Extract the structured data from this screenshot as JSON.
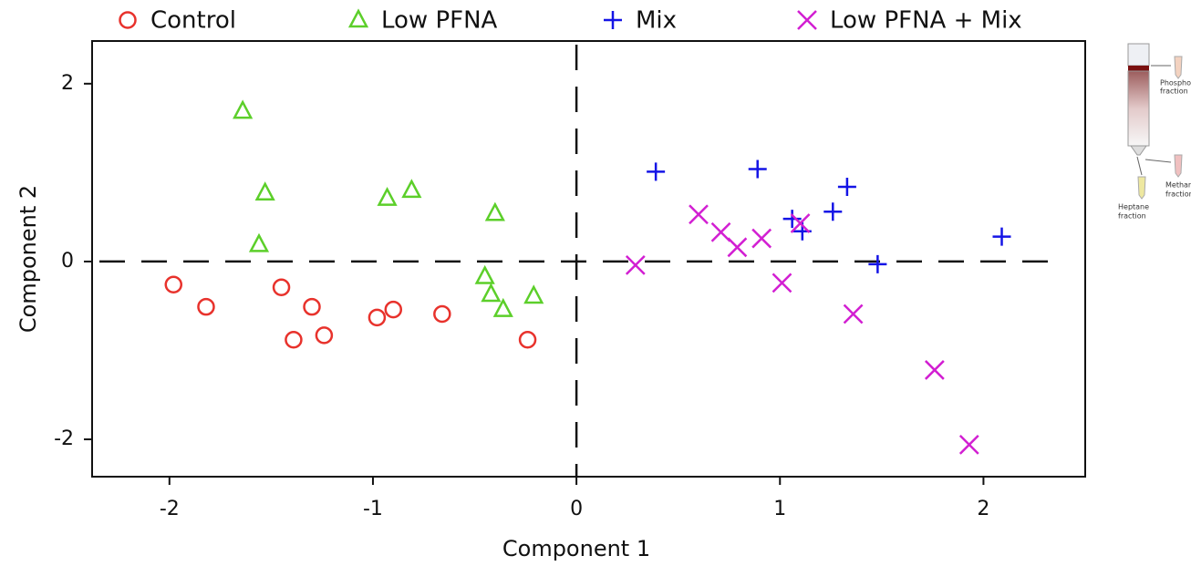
{
  "chart_data": {
    "type": "scatter",
    "xlabel": "Component 1",
    "ylabel": "Component 2",
    "xlim": [
      -2.38,
      2.5
    ],
    "ylim": [
      -2.42,
      2.48
    ],
    "xticks": [
      -2,
      -1,
      0,
      1,
      2
    ],
    "yticks": [
      -2,
      0,
      2
    ],
    "hline": 0,
    "vline": 0,
    "grid": false,
    "legend": "top",
    "series": [
      {
        "name": "Control",
        "color": "#e8322c",
        "marker": "circle",
        "x": [
          -1.98,
          -1.82,
          -1.45,
          -1.39,
          -1.3,
          -1.24,
          -0.98,
          -0.9,
          -0.66,
          -0.24
        ],
        "values": [
          -0.26,
          -0.51,
          -0.29,
          -0.88,
          -0.51,
          -0.83,
          -0.63,
          -0.54,
          -0.59,
          -0.88
        ]
      },
      {
        "name": "Low PFNA",
        "color": "#5ccf2a",
        "marker": "triangle",
        "x": [
          -1.64,
          -1.53,
          -1.56,
          -0.93,
          -0.81,
          -0.4,
          -0.45,
          -0.42,
          -0.36,
          -0.21
        ],
        "values": [
          1.69,
          0.77,
          0.19,
          0.71,
          0.8,
          0.54,
          -0.17,
          -0.37,
          -0.54,
          -0.39
        ]
      },
      {
        "name": "Mix",
        "color": "#1414e6",
        "marker": "plus",
        "x": [
          0.39,
          0.89,
          1.06,
          1.11,
          1.26,
          1.33,
          1.48,
          2.09
        ],
        "values": [
          1.01,
          1.04,
          0.48,
          0.34,
          0.56,
          0.84,
          -0.03,
          0.28
        ]
      },
      {
        "name": "Low PFNA + Mix",
        "color": "#d21fd2",
        "marker": "x",
        "x": [
          0.29,
          0.6,
          0.71,
          0.79,
          0.91,
          1.1,
          1.01,
          1.36,
          1.76,
          1.93
        ],
        "values": [
          -0.04,
          0.53,
          0.33,
          0.16,
          0.26,
          0.43,
          -0.24,
          -0.59,
          -1.22,
          -2.06
        ]
      }
    ]
  },
  "inset": {
    "labels": [
      "Phosphol",
      "fraction",
      "Methan",
      "fraction",
      "Heptane",
      "fraction"
    ]
  }
}
